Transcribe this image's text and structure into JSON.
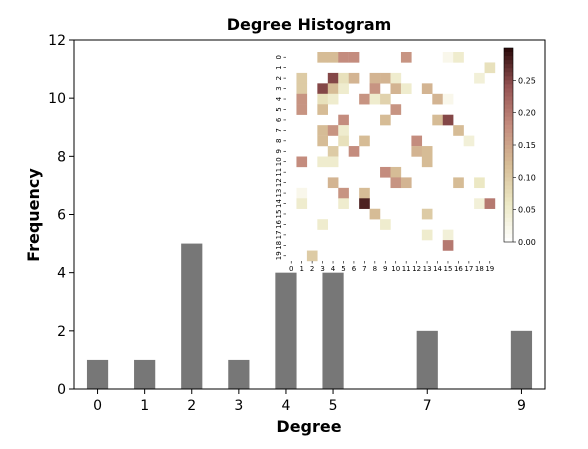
{
  "chart_data": [
    {
      "type": "bar",
      "title": "Degree Histogram",
      "xlabel": "Degree",
      "ylabel": "Frequency",
      "x": [
        0,
        1,
        2,
        3,
        4,
        5,
        7,
        9
      ],
      "values": [
        1,
        1,
        5,
        1,
        4,
        4,
        2,
        2
      ],
      "xticks": [
        "0",
        "1",
        "2",
        "3",
        "4",
        "5",
        "7",
        "9"
      ],
      "yticks": [
        "0",
        "2",
        "4",
        "6",
        "8",
        "10",
        "12"
      ],
      "xlim": [
        -0.5,
        9.5
      ],
      "ylim": [
        0,
        12
      ],
      "bar_color": "#777777",
      "grid": false,
      "legend": "none"
    },
    {
      "type": "heatmap",
      "xticks": [
        "0",
        "1",
        "2",
        "3",
        "4",
        "5",
        "6",
        "7",
        "8",
        "9",
        "10",
        "11",
        "12",
        "13",
        "14",
        "15",
        "16",
        "17",
        "18",
        "19"
      ],
      "yticks": [
        "0",
        "1",
        "2",
        "3",
        "4",
        "5",
        "6",
        "7",
        "8",
        "9",
        "10",
        "11",
        "12",
        "13",
        "14",
        "15",
        "16",
        "17",
        "18",
        "19"
      ],
      "colorbar_ticks": [
        "0.00",
        "0.05",
        "0.10",
        "0.15",
        "0.20",
        "0.25"
      ],
      "colorbar_range": [
        0,
        0.3
      ],
      "colormap": "pink_r",
      "matrix": [
        [
          0,
          0,
          0,
          0.12,
          0.12,
          0.18,
          0.18,
          0,
          0,
          0,
          0,
          0.17,
          0,
          0,
          0,
          0.02,
          0.05,
          0,
          0,
          0
        ],
        [
          0,
          0,
          0,
          0,
          0,
          0,
          0,
          0,
          0,
          0,
          0,
          0,
          0,
          0,
          0,
          0,
          0,
          0,
          0,
          0.07
        ],
        [
          0,
          0.1,
          0,
          0,
          0.25,
          0.07,
          0.13,
          0,
          0.13,
          0.13,
          0.05,
          0,
          0,
          0,
          0,
          0,
          0,
          0,
          0.04,
          0
        ],
        [
          0,
          0.1,
          0,
          0.25,
          0.12,
          0.05,
          0,
          0,
          0.17,
          0,
          0.13,
          0.05,
          0,
          0.13,
          0,
          0,
          0,
          0,
          0,
          0
        ],
        [
          0,
          0.17,
          0,
          0.07,
          0.05,
          0,
          0,
          0.17,
          0.05,
          0.09,
          0,
          0,
          0,
          0,
          0.13,
          0.02,
          0,
          0,
          0,
          0
        ],
        [
          0,
          0.17,
          0,
          0.12,
          0,
          0,
          0,
          0,
          0,
          0,
          0.17,
          0,
          0,
          0,
          0,
          0,
          0,
          0,
          0,
          0
        ],
        [
          0,
          0,
          0,
          0,
          0,
          0.18,
          0,
          0,
          0,
          0.12,
          0,
          0,
          0,
          0,
          0.12,
          0.25,
          0,
          0,
          0,
          0
        ],
        [
          0,
          0,
          0,
          0.12,
          0.17,
          0.05,
          0,
          0,
          0,
          0,
          0,
          0,
          0,
          0,
          0,
          0,
          0.12,
          0,
          0,
          0
        ],
        [
          0,
          0,
          0,
          0.12,
          0,
          0.07,
          0,
          0.12,
          0,
          0,
          0,
          0,
          0.18,
          0,
          0,
          0,
          0,
          0.04,
          0,
          0
        ],
        [
          0,
          0,
          0,
          0,
          0.1,
          0,
          0.18,
          0,
          0,
          0,
          0,
          0,
          0.13,
          0.12,
          0,
          0,
          0,
          0,
          0,
          0
        ],
        [
          0,
          0.18,
          0,
          0.05,
          0.05,
          0,
          0,
          0,
          0,
          0,
          0,
          0,
          0,
          0.12,
          0,
          0,
          0,
          0,
          0,
          0
        ],
        [
          0,
          0,
          0,
          0,
          0,
          0,
          0,
          0,
          0,
          0.18,
          0.12,
          0,
          0,
          0,
          0,
          0,
          0,
          0,
          0,
          0
        ],
        [
          0,
          0,
          0,
          0,
          0.13,
          0,
          0,
          0,
          0,
          0,
          0.17,
          0.13,
          0,
          0,
          0,
          0,
          0.12,
          0,
          0.06,
          0
        ],
        [
          0,
          0.02,
          0,
          0,
          0,
          0.17,
          0,
          0.12,
          0,
          0,
          0,
          0,
          0,
          0,
          0,
          0,
          0,
          0,
          0,
          0
        ],
        [
          0,
          0.05,
          0,
          0,
          0,
          0.05,
          0,
          0.28,
          0,
          0,
          0,
          0,
          0,
          0,
          0,
          0,
          0,
          0,
          0.04,
          0.2
        ],
        [
          0,
          0,
          0,
          0,
          0,
          0,
          0,
          0,
          0.12,
          0,
          0,
          0,
          0,
          0.1,
          0,
          0,
          0,
          0,
          0,
          0
        ],
        [
          0,
          0,
          0,
          0.05,
          0,
          0,
          0,
          0,
          0,
          0.05,
          0,
          0,
          0,
          0,
          0,
          0,
          0,
          0,
          0,
          0
        ],
        [
          0,
          0,
          0,
          0,
          0,
          0,
          0,
          0,
          0,
          0,
          0,
          0,
          0,
          0.05,
          0,
          0.04,
          0,
          0,
          0,
          0
        ],
        [
          0,
          0,
          0,
          0,
          0,
          0,
          0,
          0,
          0,
          0,
          0,
          0,
          0,
          0,
          0,
          0.2,
          0,
          0,
          0,
          0
        ],
        [
          0,
          0,
          0.1,
          0,
          0,
          0,
          0,
          0,
          0,
          0,
          0,
          0,
          0,
          0,
          0,
          0,
          0,
          0,
          0,
          0
        ]
      ]
    }
  ]
}
